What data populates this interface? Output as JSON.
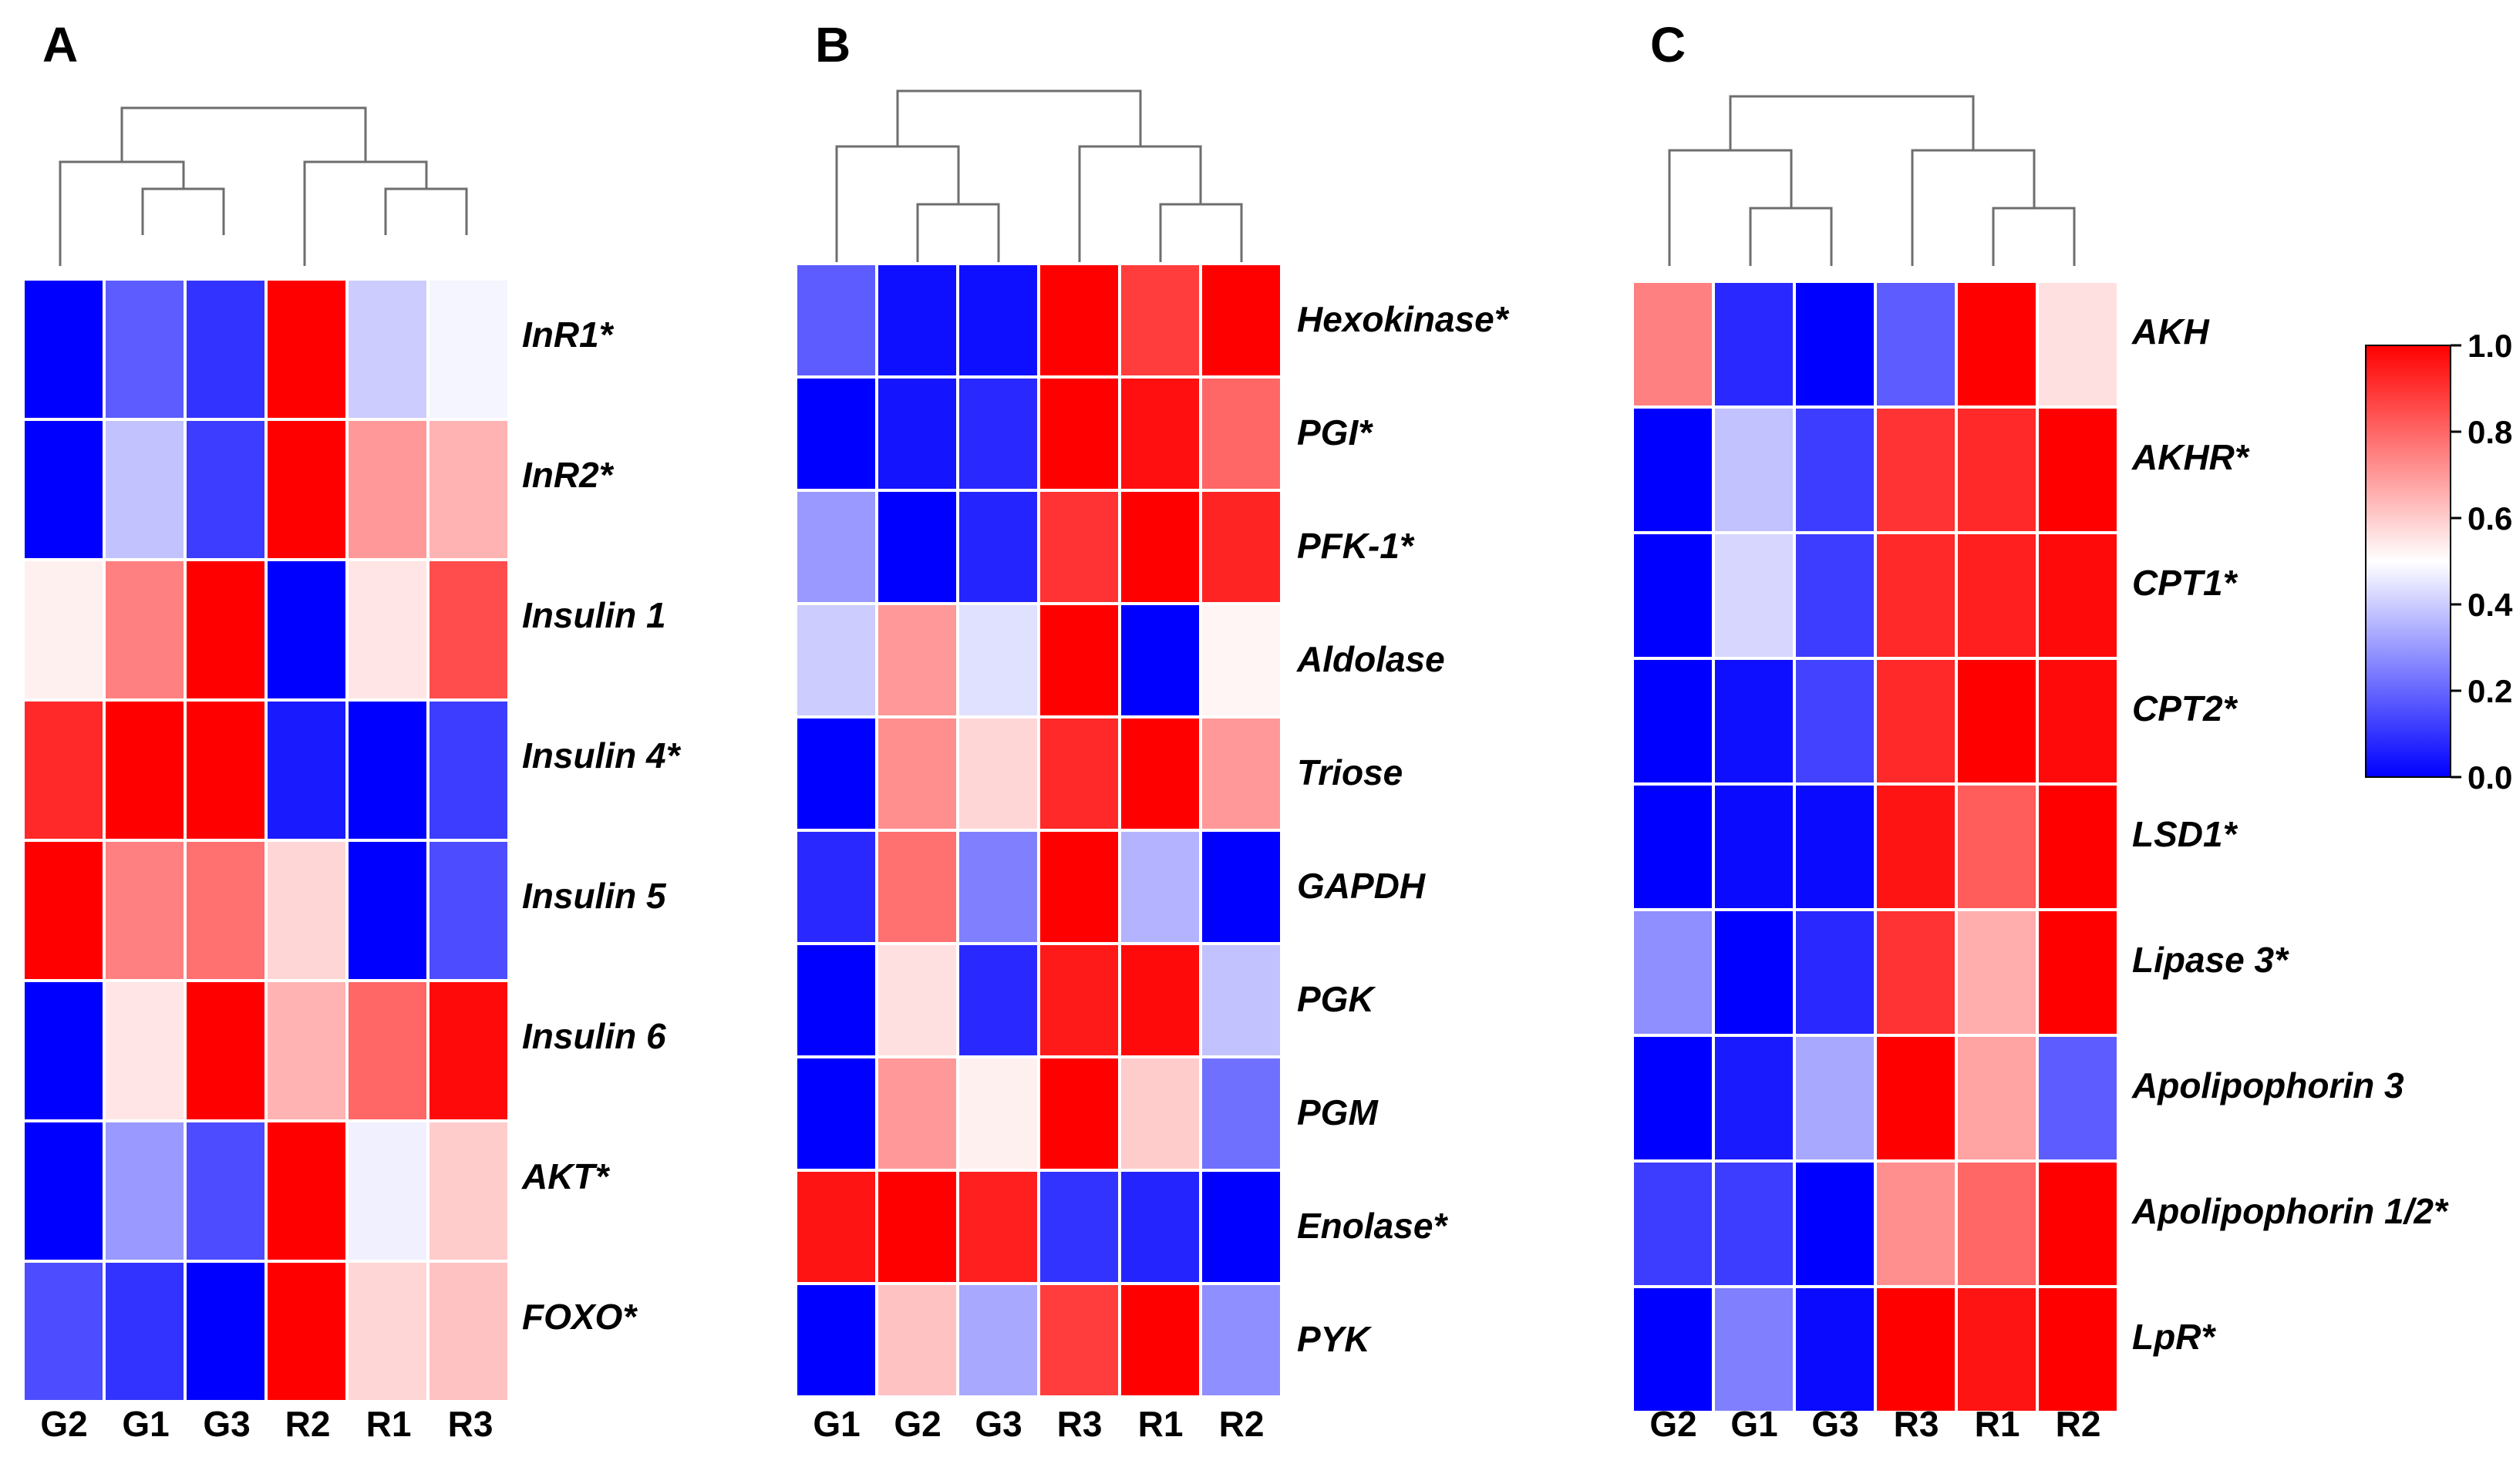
{
  "chart_data": [
    {
      "type": "heatmap",
      "panel": "A",
      "columns": [
        "G2",
        "G1",
        "G3",
        "R2",
        "R1",
        "R3"
      ],
      "rows": [
        "InR1*",
        "InR2*",
        "Insulin 1",
        "Insulin 4*",
        "Insulin 5",
        "Insulin 6",
        "AKT*",
        "FOXO*"
      ],
      "values": [
        [
          0.0,
          0.18,
          0.1,
          1.0,
          0.4,
          0.48
        ],
        [
          0.0,
          0.38,
          0.12,
          1.0,
          0.7,
          0.65
        ],
        [
          0.53,
          0.75,
          1.0,
          0.0,
          0.55,
          0.85
        ],
        [
          0.92,
          1.0,
          1.0,
          0.05,
          0.0,
          0.12
        ],
        [
          1.0,
          0.75,
          0.78,
          0.58,
          0.0,
          0.15
        ],
        [
          0.0,
          0.55,
          1.0,
          0.65,
          0.8,
          0.98
        ],
        [
          0.0,
          0.3,
          0.15,
          1.0,
          0.47,
          0.6
        ],
        [
          0.15,
          0.1,
          0.0,
          1.0,
          0.58,
          0.62
        ]
      ],
      "colorscale": {
        "min": 0.0,
        "max": 1.0
      }
    },
    {
      "type": "heatmap",
      "panel": "B",
      "columns": [
        "G1",
        "G2",
        "G3",
        "R3",
        "R1",
        "R2"
      ],
      "rows": [
        "Hexokinase*",
        "PGI*",
        "PFK-1*",
        "Aldolase",
        "Triose",
        "GAPDH",
        "PGK",
        "PGM",
        "Enolase*",
        "PYK"
      ],
      "values": [
        [
          0.18,
          0.03,
          0.03,
          1.0,
          0.88,
          1.0
        ],
        [
          0.0,
          0.04,
          0.08,
          1.0,
          0.97,
          0.8
        ],
        [
          0.3,
          0.0,
          0.07,
          0.9,
          1.0,
          0.93
        ],
        [
          0.4,
          0.7,
          0.44,
          1.0,
          0.0,
          0.52
        ],
        [
          0.0,
          0.72,
          0.58,
          0.92,
          1.0,
          0.7
        ],
        [
          0.08,
          0.78,
          0.25,
          1.0,
          0.35,
          0.0
        ],
        [
          0.0,
          0.56,
          0.08,
          0.95,
          0.98,
          0.38
        ],
        [
          0.0,
          0.7,
          0.53,
          1.0,
          0.6,
          0.22
        ],
        [
          0.96,
          1.0,
          0.94,
          0.1,
          0.07,
          0.0
        ],
        [
          0.0,
          0.62,
          0.33,
          0.88,
          1.0,
          0.28
        ]
      ],
      "colorscale": {
        "min": 0.0,
        "max": 1.0
      }
    },
    {
      "type": "heatmap",
      "panel": "C",
      "columns": [
        "G2",
        "G1",
        "G3",
        "R3",
        "R1",
        "R2"
      ],
      "rows": [
        "AKH",
        "AKHR*",
        "CPT1*",
        "CPT2*",
        "LSD1*",
        "Lipase 3*",
        "Apolipophorin 3",
        "Apolipophorin 1/2*",
        "LpR*"
      ],
      "values": [
        [
          0.75,
          0.08,
          0.0,
          0.18,
          1.0,
          0.56
        ],
        [
          0.0,
          0.38,
          0.12,
          0.9,
          0.92,
          1.0
        ],
        [
          0.0,
          0.42,
          0.12,
          0.92,
          0.94,
          0.98
        ],
        [
          0.0,
          0.03,
          0.13,
          0.92,
          1.0,
          0.98
        ],
        [
          0.0,
          0.02,
          0.02,
          0.96,
          0.82,
          1.0
        ],
        [
          0.28,
          0.0,
          0.08,
          0.9,
          0.66,
          1.0
        ],
        [
          0.0,
          0.05,
          0.33,
          1.0,
          0.68,
          0.18
        ],
        [
          0.12,
          0.12,
          0.0,
          0.72,
          0.8,
          1.0
        ],
        [
          0.0,
          0.25,
          0.02,
          1.0,
          0.96,
          1.0
        ]
      ],
      "colorscale": {
        "min": 0.0,
        "max": 1.0
      }
    }
  ],
  "colorbar": {
    "ticks": [
      "0.0",
      "0.2",
      "0.4",
      "0.6",
      "0.8",
      "1.0"
    ],
    "tick_values": [
      0.0,
      0.2,
      0.4,
      0.6,
      0.8,
      1.0
    ],
    "colors": {
      "low": "#0000ff",
      "mid": "#ffffff",
      "high": "#ff0000"
    }
  }
}
